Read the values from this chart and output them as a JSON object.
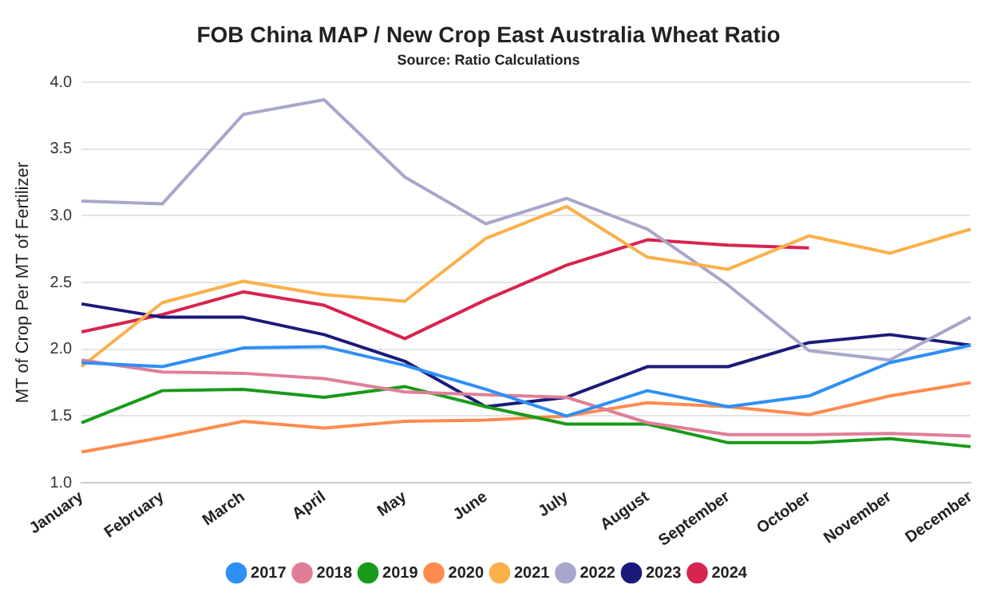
{
  "chart_data": {
    "type": "line",
    "title": "FOB China MAP / New Crop East Australia Wheat Ratio",
    "subtitle": "Source: Ratio Calculations",
    "ylabel": "MT of Crop Per MT of Fertilizer",
    "categories": [
      "January",
      "February",
      "March",
      "April",
      "May",
      "June",
      "July",
      "August",
      "September",
      "October",
      "November",
      "December"
    ],
    "series": [
      {
        "name": "2017",
        "color": "#2f8ff5",
        "values": [
          1.9,
          1.87,
          2.01,
          2.02,
          1.88,
          1.7,
          1.5,
          1.69,
          1.57,
          1.65,
          1.9,
          2.03
        ]
      },
      {
        "name": "2018",
        "color": "#e07e98",
        "values": [
          1.92,
          1.83,
          1.82,
          1.78,
          1.68,
          1.66,
          1.64,
          1.45,
          1.36,
          1.36,
          1.37,
          1.35
        ]
      },
      {
        "name": "2019",
        "color": "#1a9a1a",
        "values": [
          1.45,
          1.69,
          1.7,
          1.64,
          1.72,
          1.57,
          1.44,
          1.44,
          1.3,
          1.3,
          1.33,
          1.27
        ]
      },
      {
        "name": "2020",
        "color": "#ff8b4f",
        "values": [
          1.23,
          1.34,
          1.46,
          1.41,
          1.46,
          1.47,
          1.5,
          1.6,
          1.57,
          1.51,
          1.65,
          1.75
        ]
      },
      {
        "name": "2021",
        "color": "#fbb04a",
        "values": [
          1.87,
          2.35,
          2.51,
          2.41,
          2.36,
          2.83,
          3.07,
          2.69,
          2.6,
          2.85,
          2.72,
          2.9
        ]
      },
      {
        "name": "2022",
        "color": "#a7a7cc",
        "values": [
          3.11,
          3.09,
          3.76,
          3.87,
          3.29,
          2.94,
          3.13,
          2.9,
          2.48,
          1.99,
          1.92,
          2.24
        ]
      },
      {
        "name": "2023",
        "color": "#1a1a7a",
        "values": [
          2.34,
          2.24,
          2.24,
          2.11,
          1.91,
          1.57,
          1.64,
          1.87,
          1.87,
          2.05,
          2.11,
          2.03
        ]
      },
      {
        "name": "2024",
        "color": "#d6254f",
        "values": [
          2.13,
          2.26,
          2.43,
          2.33,
          2.08,
          2.37,
          2.63,
          2.82,
          2.78,
          2.76,
          null,
          null
        ]
      }
    ],
    "ylim": [
      1,
      4
    ],
    "yticks": [
      {
        "value": 1,
        "label": "1.0"
      },
      {
        "value": 1.5,
        "label": "1.5"
      },
      {
        "value": 2,
        "label": "2.0"
      },
      {
        "value": 2.5,
        "label": "2.5"
      },
      {
        "value": 3,
        "label": "3.0"
      },
      {
        "value": 3.5,
        "label": "3.5"
      },
      {
        "value": 4,
        "label": "4.0"
      }
    ],
    "grid": "y",
    "legend": "bottom",
    "marker": "none",
    "line_style": "solid"
  }
}
